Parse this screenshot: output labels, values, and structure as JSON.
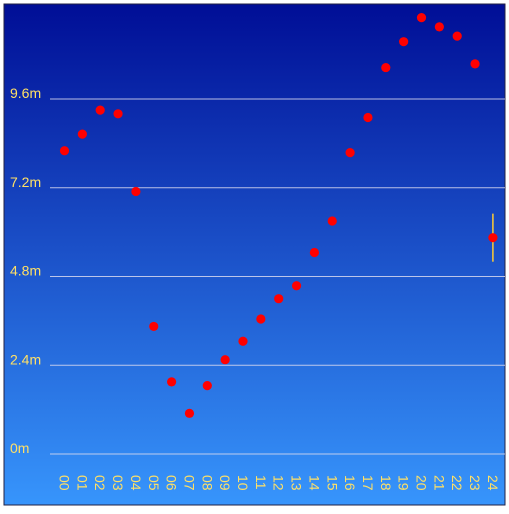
{
  "chart_data": {
    "type": "scatter",
    "title": "",
    "xlabel": "",
    "ylabel": "",
    "x_categories": [
      "00",
      "01",
      "02",
      "03",
      "04",
      "05",
      "06",
      "07",
      "08",
      "09",
      "10",
      "11",
      "12",
      "13",
      "14",
      "15",
      "16",
      "17",
      "18",
      "19",
      "20",
      "21",
      "22",
      "23",
      "24"
    ],
    "y_ticks": [
      {
        "value": 0,
        "label": "0m"
      },
      {
        "value": 2.4,
        "label": "2.4m"
      },
      {
        "value": 4.8,
        "label": "4.8m"
      },
      {
        "value": 7.2,
        "label": "7.2m"
      },
      {
        "value": 9.6,
        "label": "9.6m"
      }
    ],
    "ylim": [
      0,
      11.95
    ],
    "grid": true,
    "series": [
      {
        "points": [
          {
            "x": "00",
            "y": 8.2
          },
          {
            "x": "01",
            "y": 8.65
          },
          {
            "x": "02",
            "y": 9.3
          },
          {
            "x": "03",
            "y": 9.2
          },
          {
            "x": "04",
            "y": 7.1,
            "err": 0.12
          },
          {
            "x": "05",
            "y": 3.45
          },
          {
            "x": "06",
            "y": 1.95
          },
          {
            "x": "07",
            "y": 1.1
          },
          {
            "x": "08",
            "y": 1.85
          },
          {
            "x": "09",
            "y": 2.55
          },
          {
            "x": "10",
            "y": 3.05
          },
          {
            "x": "11",
            "y": 3.65
          },
          {
            "x": "12",
            "y": 4.2
          },
          {
            "x": "13",
            "y": 4.55
          },
          {
            "x": "14",
            "y": 5.45
          },
          {
            "x": "15",
            "y": 6.3
          },
          {
            "x": "16",
            "y": 8.15
          },
          {
            "x": "17",
            "y": 9.1
          },
          {
            "x": "18",
            "y": 10.45
          },
          {
            "x": "19",
            "y": 11.15
          },
          {
            "x": "20",
            "y": 11.8
          },
          {
            "x": "21",
            "y": 11.55
          },
          {
            "x": "22",
            "y": 11.3
          },
          {
            "x": "23",
            "y": 10.55
          },
          {
            "x": "24",
            "y": 5.85,
            "err": 0.65
          }
        ]
      }
    ],
    "colors": {
      "background_top": "#000e96",
      "background_bottom": "#3795fc",
      "marker": "#ff0000",
      "error_bar": "#ffcc33",
      "label": "#ffe066",
      "grid": "#d8d8ee"
    }
  }
}
